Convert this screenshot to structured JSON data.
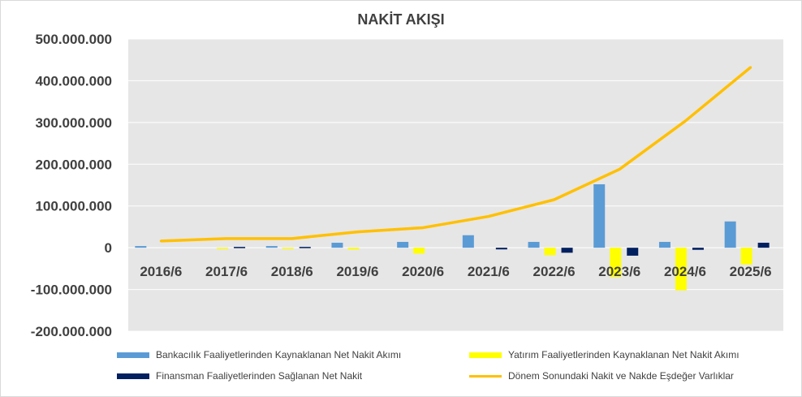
{
  "chart_data": {
    "type": "bar",
    "title": "NAKİT AKIŞI",
    "categories": [
      "2016/6",
      "2017/6",
      "2018/6",
      "2019/6",
      "2020/6",
      "2021/6",
      "2022/6",
      "2023/6",
      "2024/6",
      "2025/6"
    ],
    "ylim": [
      -200000000,
      500000000
    ],
    "yticks": [
      "500.000.000",
      "400.000.000",
      "300.000.000",
      "200.000.000",
      "100.000.000",
      "0",
      "-100.000.000",
      "-200.000.000"
    ],
    "ytick_values": [
      500000000,
      400000000,
      300000000,
      200000000,
      100000000,
      0,
      -100000000,
      -200000000
    ],
    "grid": true,
    "legend_position": "bottom",
    "series": [
      {
        "name": "Bankacılık Faaliyetlerinden Kaynaklanan Net Nakit Akımı",
        "kind": "bar",
        "color": "#5b9bd5",
        "values": [
          4000000,
          0,
          4000000,
          12000000,
          14000000,
          30000000,
          14000000,
          152000000,
          14000000,
          63000000
        ]
      },
      {
        "name": "Yatırım Faaliyetlerinden Kaynaklanan Net Nakit Akımı",
        "kind": "bar",
        "color": "#ffff00",
        "values": [
          0,
          -3000000,
          -3000000,
          -4000000,
          -14000000,
          0,
          -18000000,
          -70000000,
          -102000000,
          -40000000
        ]
      },
      {
        "name": "Finansman Faaliyetlerinden Sağlanan Net Nakit",
        "kind": "bar",
        "color": "#002060",
        "values": [
          0,
          2000000,
          2000000,
          0,
          0,
          -4000000,
          -12000000,
          -19000000,
          -5000000,
          12000000
        ]
      },
      {
        "name": "Dönem Sonundaki Nakit ve Nakde Eşdeğer Varlıklar",
        "kind": "line",
        "color": "#ffc000",
        "values": [
          16000000,
          22000000,
          22000000,
          38000000,
          48000000,
          75000000,
          115000000,
          188000000,
          303000000,
          432000000
        ]
      }
    ]
  }
}
